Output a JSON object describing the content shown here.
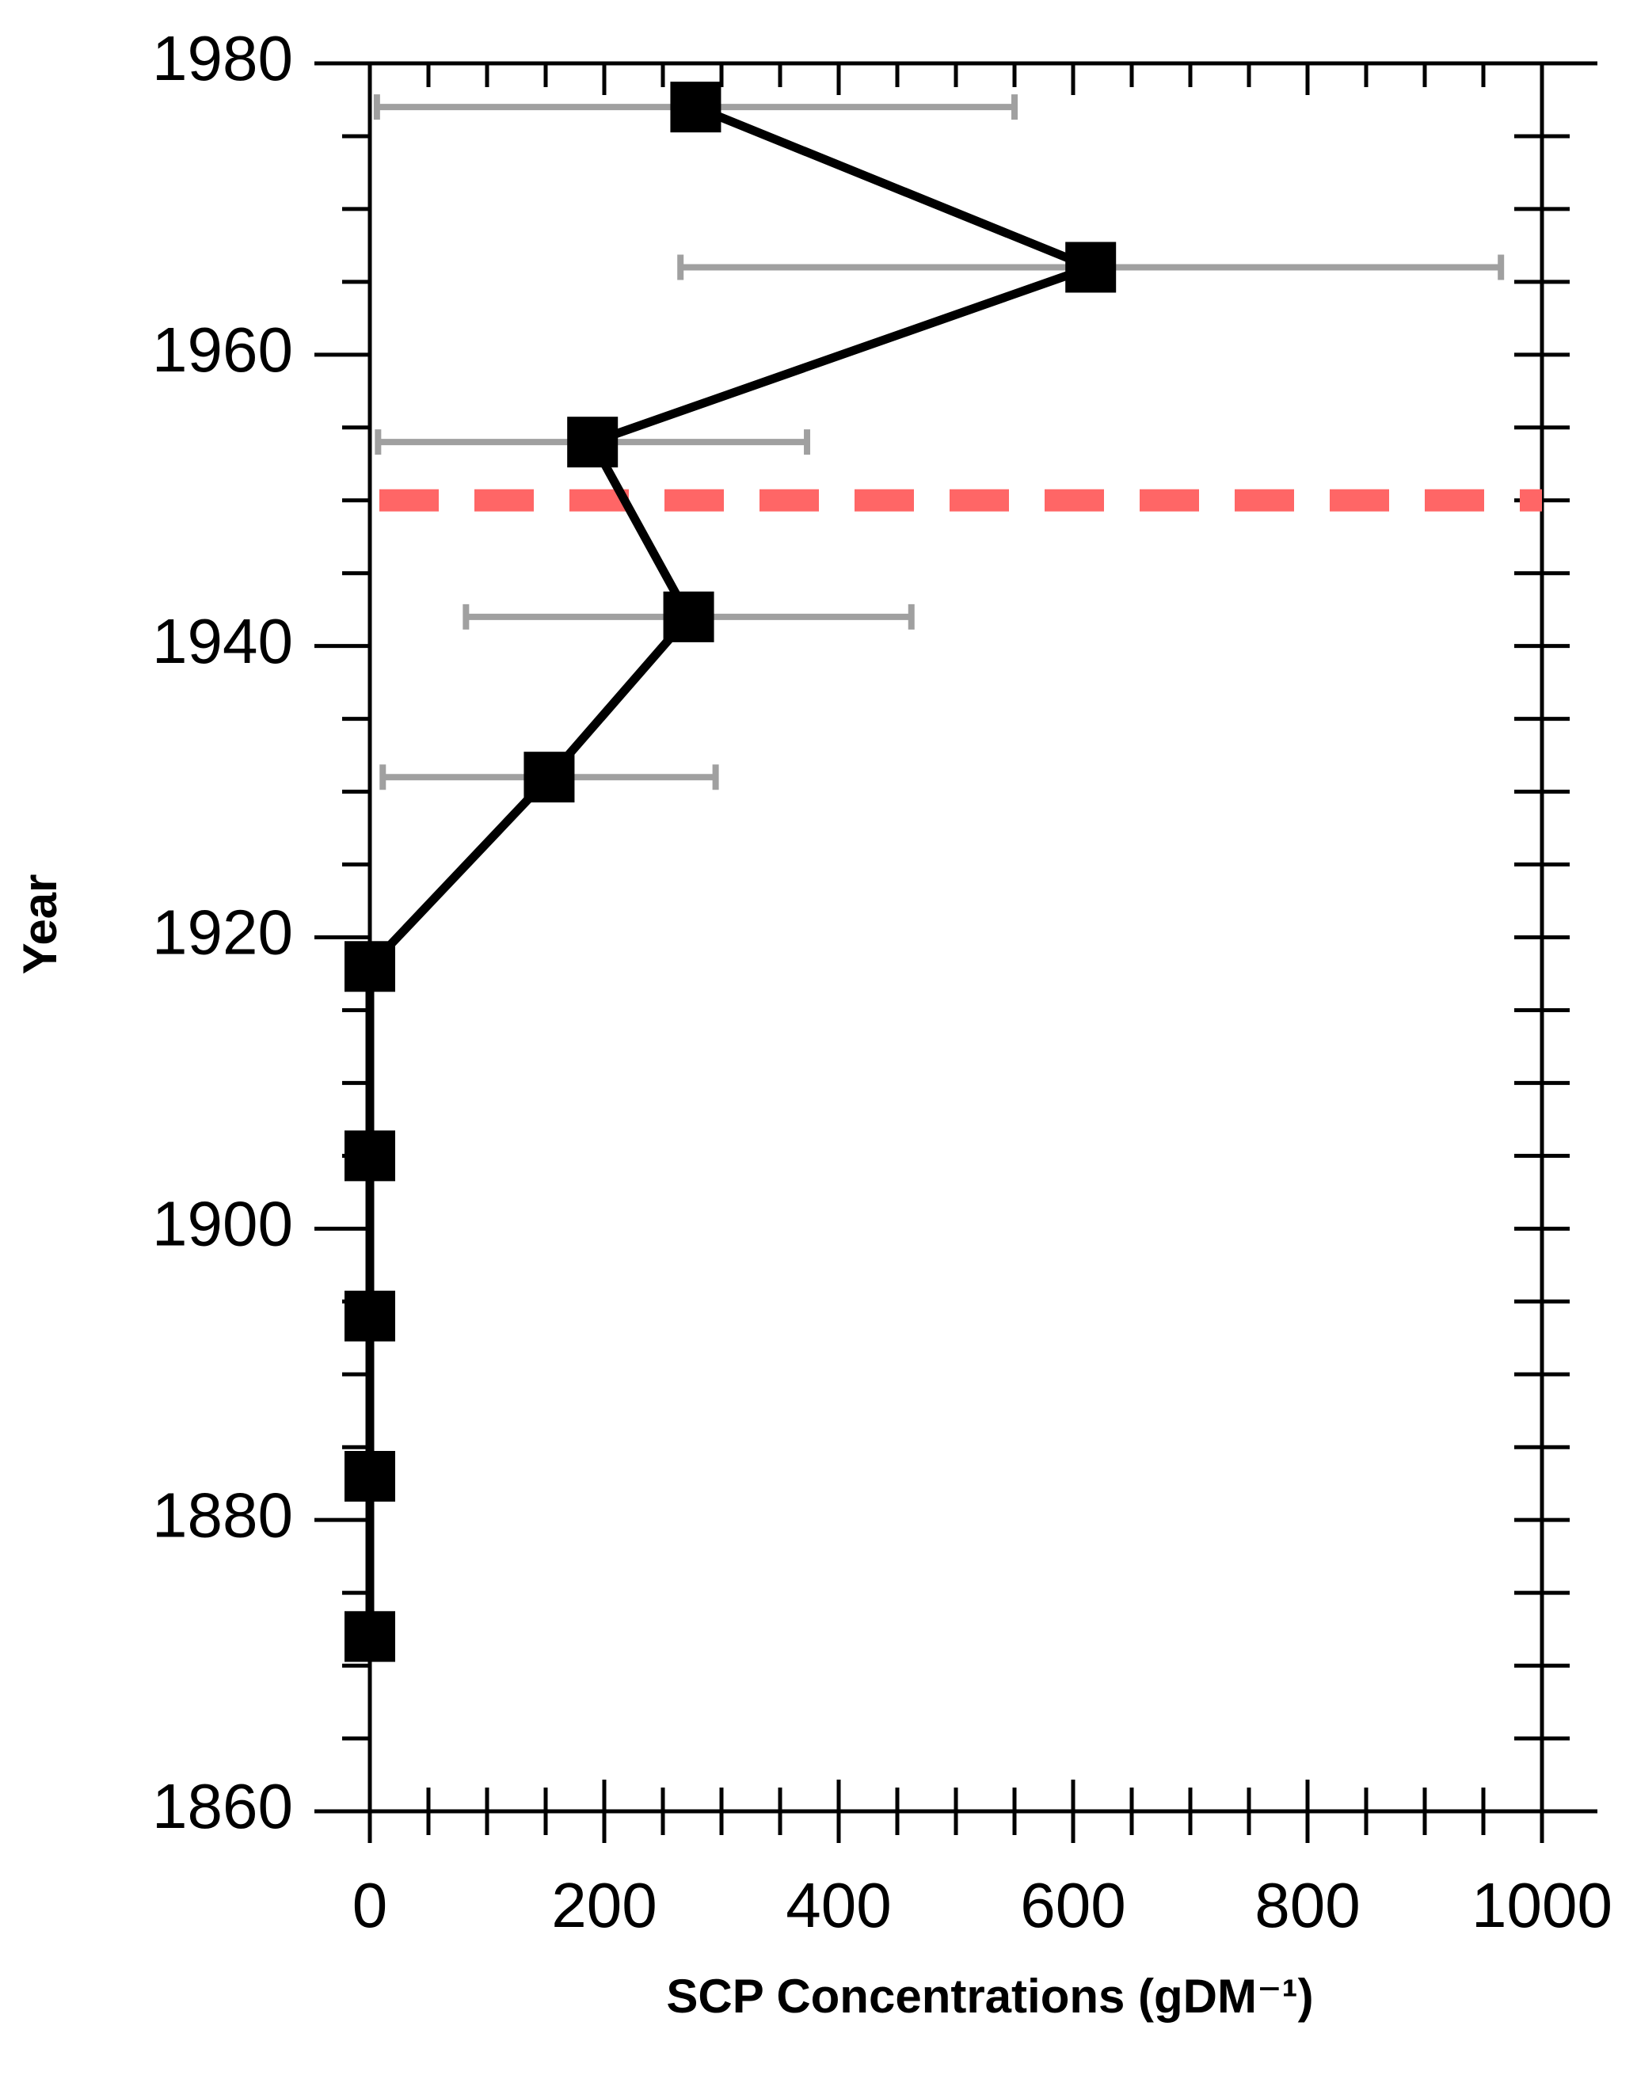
{
  "chart_data": {
    "type": "line",
    "orientation": "vertical-profile",
    "xlabel": "SCP Concentrations (gDM⁻¹)",
    "ylabel": "Year",
    "y": [
      1977,
      1966,
      1954,
      1942,
      1931,
      1918,
      1905,
      1894,
      1883,
      1872
    ],
    "series": [
      {
        "name": "SCP",
        "color": "#000000",
        "values": [
          278,
          615,
          190,
          272,
          153,
          0,
          0,
          0,
          0,
          0
        ],
        "errors": [
          272,
          350,
          183,
          190,
          142,
          null,
          null,
          null,
          null,
          null
        ],
        "error_color": "#a0a0a0"
      }
    ],
    "reference_line": {
      "y": 1950,
      "color": "#ff6666"
    },
    "xlim": [
      0,
      1000
    ],
    "xticks": [
      0,
      200,
      400,
      600,
      800,
      1000
    ],
    "xminorticks": [
      50,
      100,
      150,
      250,
      300,
      350,
      450,
      500,
      550,
      650,
      700,
      750,
      850,
      900,
      950
    ],
    "ylim": [
      1860,
      1980
    ],
    "yticks": [
      1860,
      1880,
      1900,
      1920,
      1940,
      1960,
      1980
    ],
    "yminorticks": [
      1865,
      1870,
      1875,
      1885,
      1890,
      1895,
      1905,
      1910,
      1915,
      1925,
      1930,
      1935,
      1945,
      1950,
      1955,
      1965,
      1970,
      1975
    ]
  }
}
